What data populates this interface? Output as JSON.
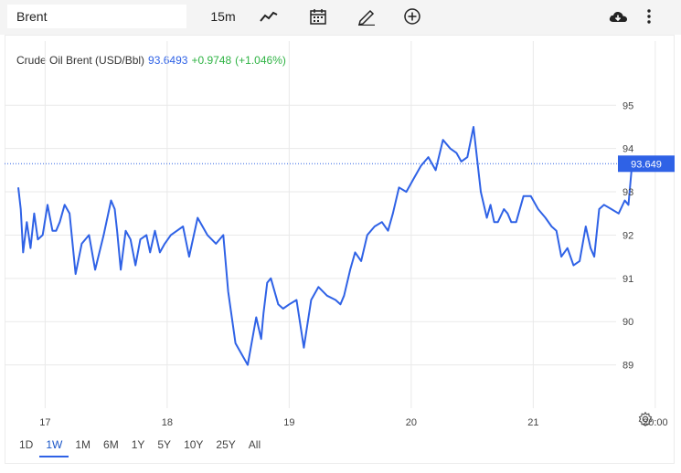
{
  "toolbar": {
    "symbol_value": "Brent",
    "interval_label": "15m",
    "icons": [
      "line-chart-icon",
      "calendar-icon",
      "pencil-icon",
      "plus-circle-icon",
      "cloud-download-icon",
      "more-vertical-icon"
    ]
  },
  "quote": {
    "name": "Crude Oil Brent (USD/Bbl)",
    "price": "93.6493",
    "change": "+0.9748",
    "change_pct": "(+1.046%)",
    "last_label": "93.649"
  },
  "colors": {
    "line": "#2f62e6",
    "price_text": "#2f62e6",
    "change_text": "#2fb344",
    "grid": "#e9e9e9",
    "last_price_badge": "#2f62e6"
  },
  "range_buttons": [
    "1D",
    "1W",
    "1M",
    "6M",
    "1Y",
    "5Y",
    "10Y",
    "25Y",
    "All"
  ],
  "active_range": "1W",
  "chart_data": {
    "type": "line",
    "title": "Crude Oil Brent (USD/Bbl)",
    "xlabel": "",
    "ylabel": "",
    "x_tick_labels": [
      "17",
      "18",
      "19",
      "20",
      "21",
      "20:00"
    ],
    "y_tick_labels": [
      "89",
      "90",
      "91",
      "92",
      "93",
      "94",
      "95"
    ],
    "ylim": [
      88.0,
      95.85
    ],
    "xlim": [
      0,
      5.13
    ],
    "grid": true,
    "last_value": 93.649,
    "series": [
      {
        "x": [
          0.0,
          0.02,
          0.04,
          0.07,
          0.1,
          0.13,
          0.16,
          0.2,
          0.24,
          0.28,
          0.31,
          0.34,
          0.38,
          0.42,
          0.47,
          0.52,
          0.58,
          0.63,
          0.7,
          0.76,
          0.79,
          0.81,
          0.84,
          0.88,
          0.92,
          0.96,
          1.0,
          1.05,
          1.08,
          1.12,
          1.16,
          1.2,
          1.25,
          1.3,
          1.35,
          1.4,
          1.47,
          1.55,
          1.62,
          1.68,
          1.72,
          1.78,
          1.88,
          1.95,
          1.99,
          2.01,
          2.04,
          2.07,
          2.11,
          2.13,
          2.17,
          2.22,
          2.28,
          2.34,
          2.4,
          2.46,
          2.53,
          2.6,
          2.64,
          2.67,
          2.72,
          2.76,
          2.81,
          2.86,
          2.92,
          2.98,
          3.03,
          3.07,
          3.12,
          3.18,
          3.24,
          3.3,
          3.36,
          3.42,
          3.48,
          3.54,
          3.59,
          3.63,
          3.68,
          3.73,
          3.79,
          3.84,
          3.87,
          3.9,
          3.93,
          3.98,
          4.01,
          4.04,
          4.08,
          4.14,
          4.2,
          4.26,
          4.32,
          4.37,
          4.41,
          4.45,
          4.5,
          4.55,
          4.6,
          4.65,
          4.69,
          4.72,
          4.76,
          4.8,
          4.86,
          4.92,
          4.97,
          5.0,
          5.03
        ],
        "values": [
          93.1,
          92.6,
          91.6,
          92.3,
          91.7,
          92.5,
          91.9,
          92.0,
          92.7,
          92.1,
          92.1,
          92.3,
          92.7,
          92.5,
          91.1,
          91.8,
          92.0,
          91.2,
          92.0,
          92.8,
          92.6,
          92.1,
          91.2,
          92.1,
          91.9,
          91.3,
          91.9,
          92.0,
          91.6,
          92.1,
          91.6,
          91.8,
          92.0,
          92.1,
          92.2,
          91.5,
          92.4,
          92.0,
          91.8,
          92.0,
          90.7,
          89.5,
          89.0,
          90.1,
          89.6,
          90.2,
          90.9,
          91.0,
          90.6,
          90.4,
          90.3,
          90.4,
          90.5,
          89.4,
          90.5,
          90.8,
          90.6,
          90.5,
          90.4,
          90.6,
          91.2,
          91.6,
          91.4,
          92.0,
          92.2,
          92.3,
          92.1,
          92.5,
          93.1,
          93.0,
          93.3,
          93.6,
          93.8,
          93.5,
          94.2,
          94.0,
          93.9,
          93.7,
          93.8,
          94.5,
          93.0,
          92.4,
          92.7,
          92.3,
          92.3,
          92.6,
          92.5,
          92.3,
          92.3,
          92.9,
          92.9,
          92.6,
          92.4,
          92.2,
          92.1,
          91.5,
          91.7,
          91.3,
          91.4,
          92.2,
          91.7,
          91.5,
          92.6,
          92.7,
          92.6,
          92.5,
          92.8,
          92.7,
          93.65
        ]
      }
    ]
  }
}
